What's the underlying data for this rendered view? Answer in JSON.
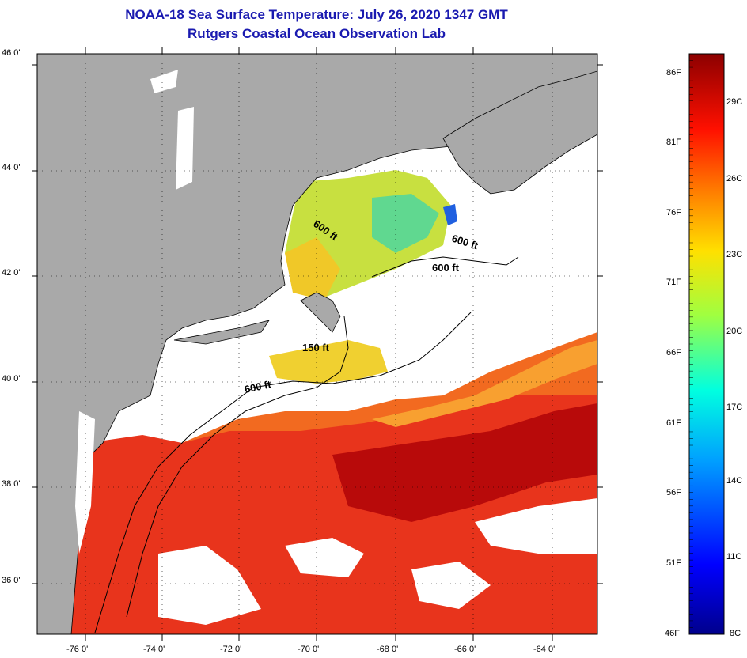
{
  "title": {
    "line1": "NOAA-18 Sea Surface Temperature:  July 26, 2020 1347 GMT",
    "line2": "Rutgers Coastal Ocean Observation Lab"
  },
  "lat_labels": [
    "46 0'",
    "44 0'",
    "42 0'",
    "40 0'",
    "38 0'",
    "36 0'"
  ],
  "lon_labels": [
    "-76 0'",
    "-74 0'",
    "-72 0'",
    "-70 0'",
    "-68 0'",
    "-66 0'",
    "-64 0'"
  ],
  "contour_labels": [
    "600 ft",
    "600 ft",
    "600 ft",
    "150 ft",
    "600 ft"
  ],
  "colorbar": {
    "f_labels": [
      "86F",
      "81F",
      "76F",
      "71F",
      "66F",
      "61F",
      "56F",
      "51F",
      "46F"
    ],
    "c_labels": [
      "29C",
      "26C",
      "23C",
      "20C",
      "17C",
      "14C",
      "11C",
      "8C"
    ],
    "range_f": [
      46,
      89
    ]
  },
  "colors": {
    "land": "#a9a9a9",
    "title": "#1a1ab0",
    "warm": "#e8281a",
    "hot": "#b80808",
    "mid": "#f8c020",
    "cool": "#30c8c0",
    "no_data": "#ffffff"
  }
}
